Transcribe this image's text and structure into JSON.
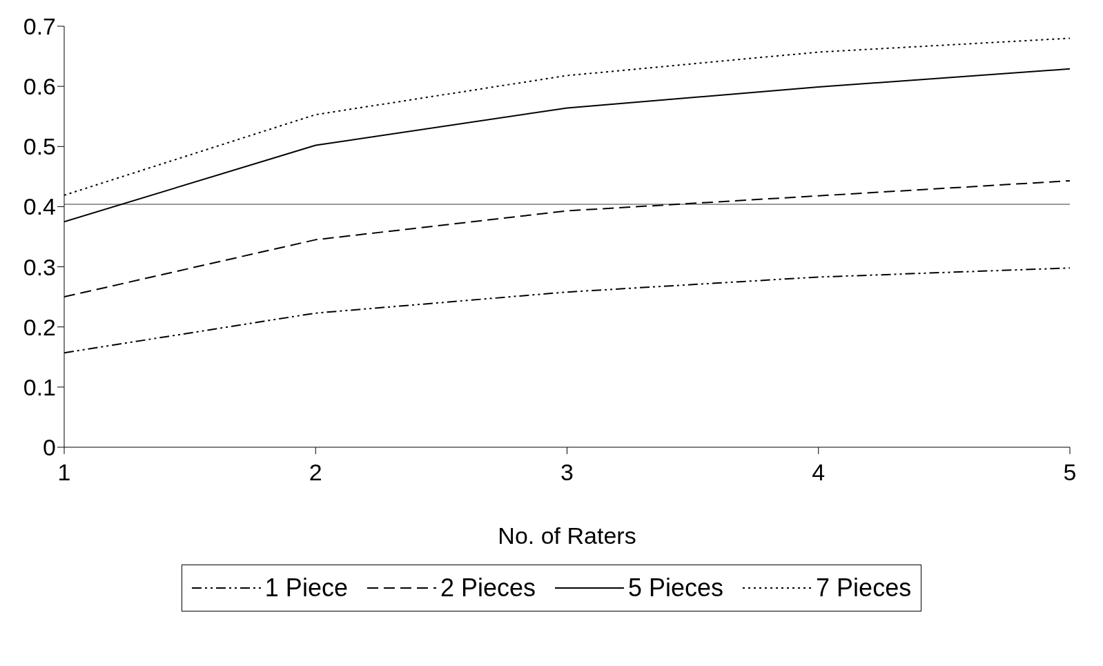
{
  "chart_data": {
    "type": "line",
    "xlabel": "No. of Raters",
    "x": [
      1,
      2,
      3,
      4,
      5
    ],
    "series": [
      {
        "name": "1 Piece",
        "color": "#000000",
        "line_style": "dashdot",
        "values": [
          0.157,
          0.223,
          0.258,
          0.283,
          0.298
        ]
      },
      {
        "name": "2 Pieces",
        "color": "#000000",
        "line_style": "dashed",
        "values": [
          0.25,
          0.345,
          0.393,
          0.418,
          0.443
        ]
      },
      {
        "name": "5 Pieces",
        "color": "#000000",
        "line_style": "solid",
        "values": [
          0.375,
          0.502,
          0.564,
          0.599,
          0.629
        ]
      },
      {
        "name": "7 Pieces",
        "color": "#000000",
        "line_style": "dotted",
        "values": [
          0.419,
          0.553,
          0.618,
          0.657,
          0.68
        ]
      }
    ],
    "xlim": [
      1,
      5
    ],
    "xticks": [
      1,
      2,
      3,
      4,
      5
    ],
    "ylim": [
      0,
      0.7
    ],
    "yticks": [
      0,
      0.1,
      0.2,
      0.3,
      0.4,
      0.5,
      0.6,
      0.7
    ],
    "ref_lines": [
      {
        "axis": "y",
        "value": 0.404,
        "color": "#999999"
      }
    ],
    "grid": false,
    "legend": "bottom",
    "marker": "none"
  }
}
